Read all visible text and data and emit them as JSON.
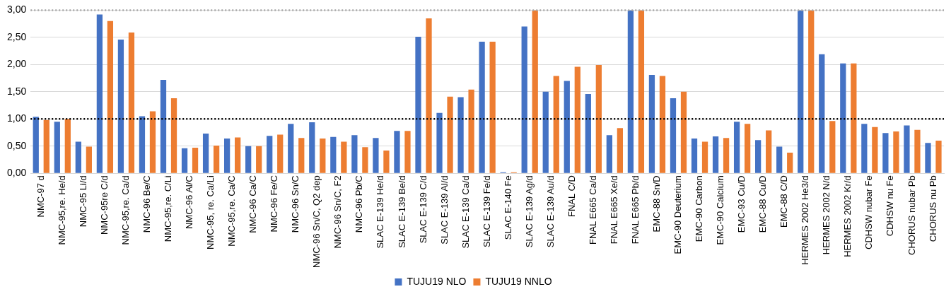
{
  "chart_data": {
    "type": "bar",
    "categories": [
      "NMC-97 d",
      "NMC-95,re. He/d",
      "NMC-95 Li/d",
      "NMC-95re C/d",
      "NMC-95,re. Ca/d",
      "NMC-96 Be/C",
      "NMC-95,re. C/Li",
      "NMC-96 Al/C",
      "NMC-95, re. Ca/Li",
      "NMC-95,re. Ca/C",
      "NMC-96 Ca/C",
      "NMC-96 Fe/C",
      "NMC-96 Sn/C",
      "NMC-96 Sn/C, Q2 dep",
      "NMC-96 Sn/C, F2",
      "NMC-96 Pb/C",
      "SLAC E-139 He/d",
      "SLAC E-139 Be/d",
      "SLAC E-139 C/d",
      "SLAC E-139 Al/d",
      "SLAC E-139 Ca/d",
      "SLAC E-139 Fe/d",
      "SLAC E-140 Fe",
      "SLAC E-139 Ag/d",
      "SLAC E-139 Au/d",
      "FNAL C/D",
      "FNAL E665 Ca/d",
      "FNAL E665 Xe/d",
      "FNAL E665 Pb/d",
      "EMC-88 Sn/D",
      "EMC-90 Deuterium",
      "EMC-90 Carbon",
      "EMC-90 Calcium",
      "EMC-93 Cu/D",
      "EMC-88 Cu/D",
      "EMC-88 C/D",
      "HERMES 2002 He3/d",
      "HERMES 2002 N/d",
      "HERMES 2002 Kr/d",
      "CDHSW nubar Fe",
      "CDHSW nu Fe",
      "CHORUS nubar Pb",
      "CHORUS nu Pb"
    ],
    "series": [
      {
        "name": "TUJU19 NLO",
        "color": "#4472c4",
        "values": [
          1.04,
          0.95,
          0.58,
          2.92,
          2.46,
          1.05,
          1.72,
          0.46,
          0.73,
          0.64,
          0.5,
          0.69,
          0.91,
          0.94,
          0.67,
          0.7,
          0.65,
          0.78,
          2.51,
          1.11,
          1.4,
          2.42,
          0.02,
          2.7,
          1.5,
          1.7,
          1.46,
          0.7,
          3.0,
          1.81,
          1.38,
          0.64,
          0.68,
          0.95,
          0.61,
          0.49,
          3.0,
          2.19,
          2.02,
          0.91,
          0.74,
          0.88,
          0.56
        ]
      },
      {
        "name": "TUJU19 NNLO",
        "color": "#ed7d31",
        "values": [
          0.98,
          1.0,
          0.49,
          2.8,
          2.59,
          1.14,
          1.38,
          0.47,
          0.51,
          0.66,
          0.5,
          0.71,
          0.65,
          0.64,
          0.58,
          0.48,
          0.42,
          0.78,
          2.85,
          1.41,
          1.54,
          2.42,
          0.02,
          3.0,
          1.79,
          1.96,
          1.99,
          0.83,
          3.0,
          1.79,
          1.5,
          0.58,
          0.65,
          0.91,
          0.79,
          0.38,
          3.0,
          0.96,
          2.02,
          0.85,
          0.77,
          0.8,
          0.6
        ]
      }
    ],
    "ylim": [
      0,
      3
    ],
    "yticks": [
      {
        "value": 0,
        "label": "0,00"
      },
      {
        "value": 0.5,
        "label": "0,50"
      },
      {
        "value": 1,
        "label": "1,00"
      },
      {
        "value": 1.5,
        "label": "1,50"
      },
      {
        "value": 2,
        "label": "2,00"
      },
      {
        "value": 2.5,
        "label": "2,50"
      },
      {
        "value": 3,
        "label": "3,00"
      }
    ],
    "grid": "y",
    "legend": "bottom",
    "ref_lines": [
      {
        "axis": "y",
        "value": 1,
        "color": "#000000",
        "line_style": "dotted"
      },
      {
        "axis": "y",
        "value": 3,
        "color": "#a6a6a6",
        "line_style": "dotted"
      }
    ]
  }
}
